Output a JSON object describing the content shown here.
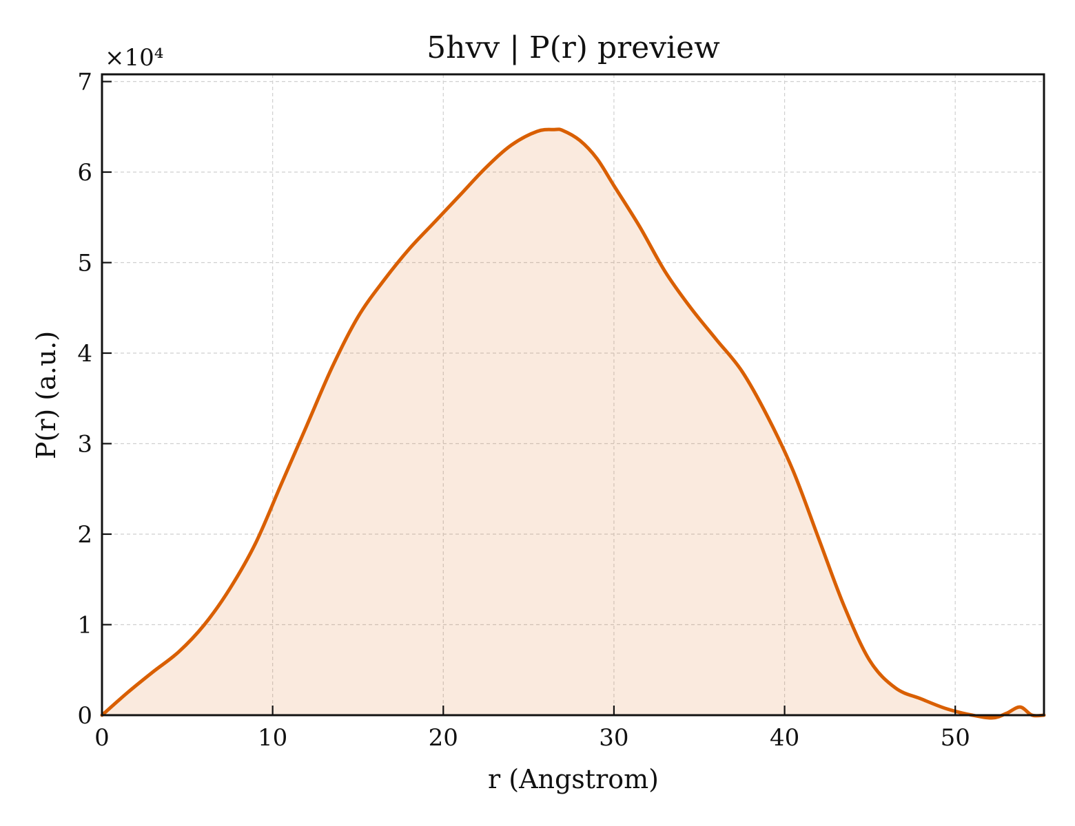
{
  "chart_data": {
    "type": "area",
    "title": "5hvv | P(r) preview",
    "xlabel": "r (Angstrom)",
    "ylabel": "P(r) (a.u.)",
    "y_scale_label": "×10⁴",
    "xlim": [
      0,
      55.2
    ],
    "ylim": [
      0,
      70800
    ],
    "x_ticks": [
      0,
      10,
      20,
      30,
      40,
      50
    ],
    "x_tick_labels": [
      "0",
      "10",
      "20",
      "30",
      "40",
      "50"
    ],
    "y_ticks": [
      0,
      10000,
      20000,
      30000,
      40000,
      50000,
      60000,
      70000
    ],
    "y_tick_labels": [
      "0",
      "1",
      "2",
      "3",
      "4",
      "5",
      "6",
      "7"
    ],
    "grid": true,
    "color": "#d95f02",
    "series": [
      {
        "x": [
          0,
          1.5,
          3,
          4.5,
          6,
          7.5,
          9,
          10.5,
          12,
          13.5,
          15,
          16.5,
          18,
          19.5,
          21,
          22.5,
          24,
          25.5,
          26.5,
          27,
          28,
          29,
          30,
          31.5,
          33,
          34.5,
          36,
          37.5,
          39,
          40.5,
          42,
          43.5,
          45,
          46.5,
          48,
          49.5,
          51,
          52.2,
          53,
          53.8,
          54.5,
          55.2
        ],
        "y": [
          0,
          2500,
          4800,
          7000,
          10000,
          14000,
          19000,
          25500,
          32000,
          38500,
          44000,
          48000,
          51500,
          54500,
          57500,
          60500,
          63000,
          64500,
          64700,
          64600,
          63500,
          61500,
          58500,
          54000,
          49000,
          45000,
          41500,
          38000,
          33000,
          27000,
          19500,
          12000,
          6000,
          3000,
          1800,
          700,
          0,
          -300,
          200,
          900,
          0,
          0
        ]
      }
    ]
  }
}
